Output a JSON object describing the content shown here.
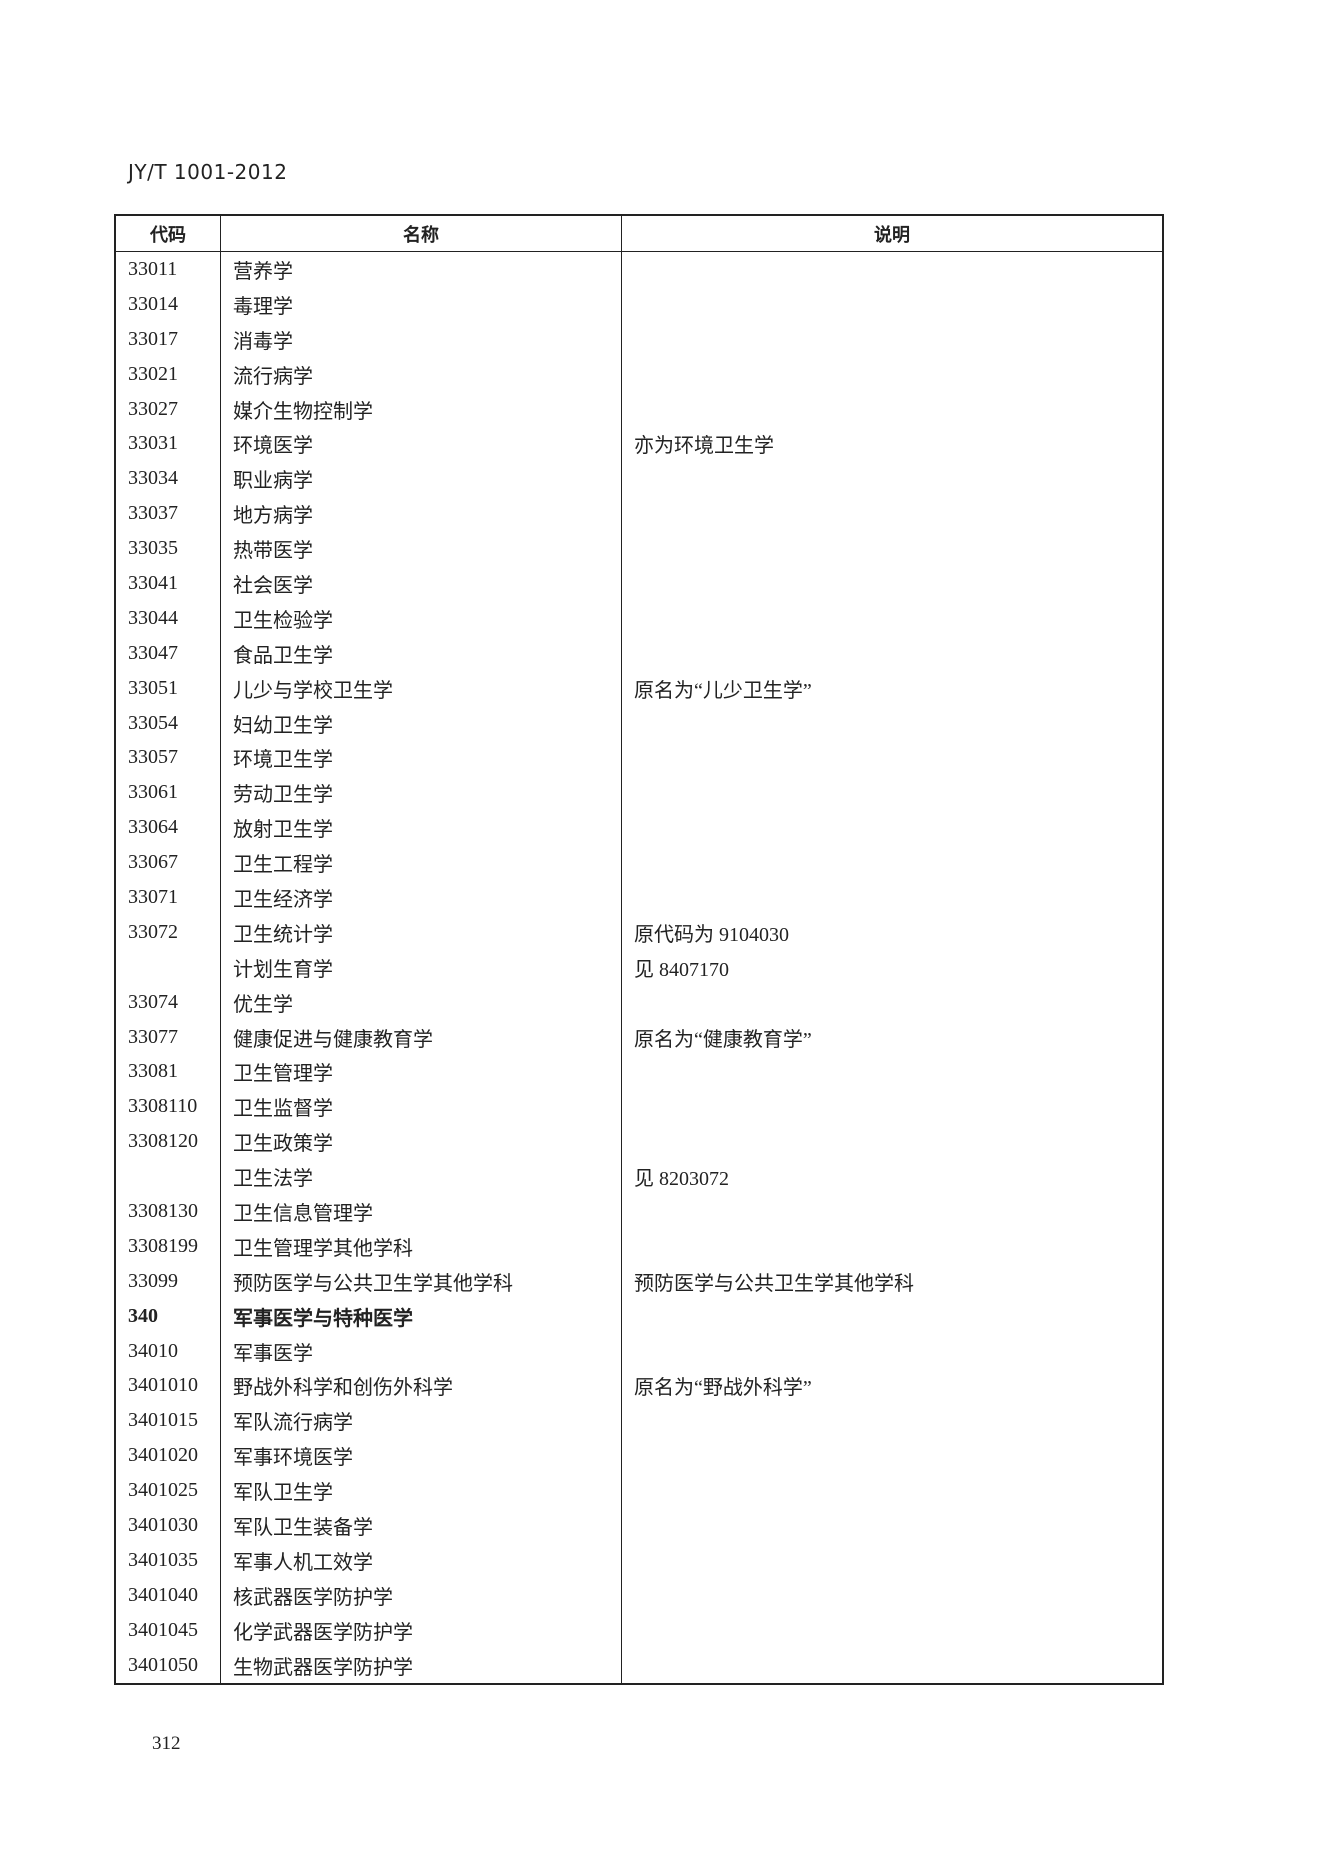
{
  "header": {
    "standard_id": "JY/T 1001-2012"
  },
  "table": {
    "columns": [
      "代码",
      "名称",
      "说明"
    ],
    "rows": [
      {
        "code": "33011",
        "name": "营养学",
        "note": ""
      },
      {
        "code": "33014",
        "name": "毒理学",
        "note": ""
      },
      {
        "code": "33017",
        "name": "消毒学",
        "note": ""
      },
      {
        "code": "33021",
        "name": "流行病学",
        "note": ""
      },
      {
        "code": "33027",
        "name": "媒介生物控制学",
        "note": ""
      },
      {
        "code": "33031",
        "name": "环境医学",
        "note": "亦为环境卫生学"
      },
      {
        "code": "33034",
        "name": "职业病学",
        "note": ""
      },
      {
        "code": "33037",
        "name": "地方病学",
        "note": ""
      },
      {
        "code": "33035",
        "name": "热带医学",
        "note": ""
      },
      {
        "code": "33041",
        "name": "社会医学",
        "note": ""
      },
      {
        "code": "33044",
        "name": "卫生检验学",
        "note": ""
      },
      {
        "code": "33047",
        "name": "食品卫生学",
        "note": ""
      },
      {
        "code": "33051",
        "name": "儿少与学校卫生学",
        "note": "原名为“儿少卫生学”"
      },
      {
        "code": "33054",
        "name": "妇幼卫生学",
        "note": ""
      },
      {
        "code": "33057",
        "name": "环境卫生学",
        "note": ""
      },
      {
        "code": "33061",
        "name": "劳动卫生学",
        "note": ""
      },
      {
        "code": "33064",
        "name": "放射卫生学",
        "note": ""
      },
      {
        "code": "33067",
        "name": "卫生工程学",
        "note": ""
      },
      {
        "code": "33071",
        "name": "卫生经济学",
        "note": ""
      },
      {
        "code": "33072",
        "name": "卫生统计学",
        "note": "原代码为 9104030"
      },
      {
        "code": "",
        "name": "计划生育学",
        "note": "见 8407170"
      },
      {
        "code": "33074",
        "name": "优生学",
        "note": ""
      },
      {
        "code": "33077",
        "name": "健康促进与健康教育学",
        "note": "原名为“健康教育学”"
      },
      {
        "code": "33081",
        "name": "卫生管理学",
        "note": ""
      },
      {
        "code": "3308110",
        "name": "卫生监督学",
        "note": ""
      },
      {
        "code": "3308120",
        "name": "卫生政策学",
        "note": ""
      },
      {
        "code": "",
        "name": "卫生法学",
        "note": "见 8203072"
      },
      {
        "code": "3308130",
        "name": "卫生信息管理学",
        "note": ""
      },
      {
        "code": "3308199",
        "name": "卫生管理学其他学科",
        "note": ""
      },
      {
        "code": "33099",
        "name": "预防医学与公共卫生学其他学科",
        "note": "预防医学与公共卫生学其他学科"
      },
      {
        "code": "340",
        "name": "军事医学与特种医学",
        "note": "",
        "bold": true
      },
      {
        "code": "34010",
        "name": "军事医学",
        "note": ""
      },
      {
        "code": "3401010",
        "name": "野战外科学和创伤外科学",
        "note": "原名为“野战外科学”"
      },
      {
        "code": "3401015",
        "name": "军队流行病学",
        "note": ""
      },
      {
        "code": "3401020",
        "name": "军事环境医学",
        "note": ""
      },
      {
        "code": "3401025",
        "name": "军队卫生学",
        "note": ""
      },
      {
        "code": "3401030",
        "name": "军队卫生装备学",
        "note": ""
      },
      {
        "code": "3401035",
        "name": "军事人机工效学",
        "note": ""
      },
      {
        "code": "3401040",
        "name": "核武器医学防护学",
        "note": ""
      },
      {
        "code": "3401045",
        "name": "化学武器医学防护学",
        "note": ""
      },
      {
        "code": "3401050",
        "name": "生物武器医学防护学",
        "note": ""
      }
    ]
  },
  "footer": {
    "page_number": "312"
  }
}
